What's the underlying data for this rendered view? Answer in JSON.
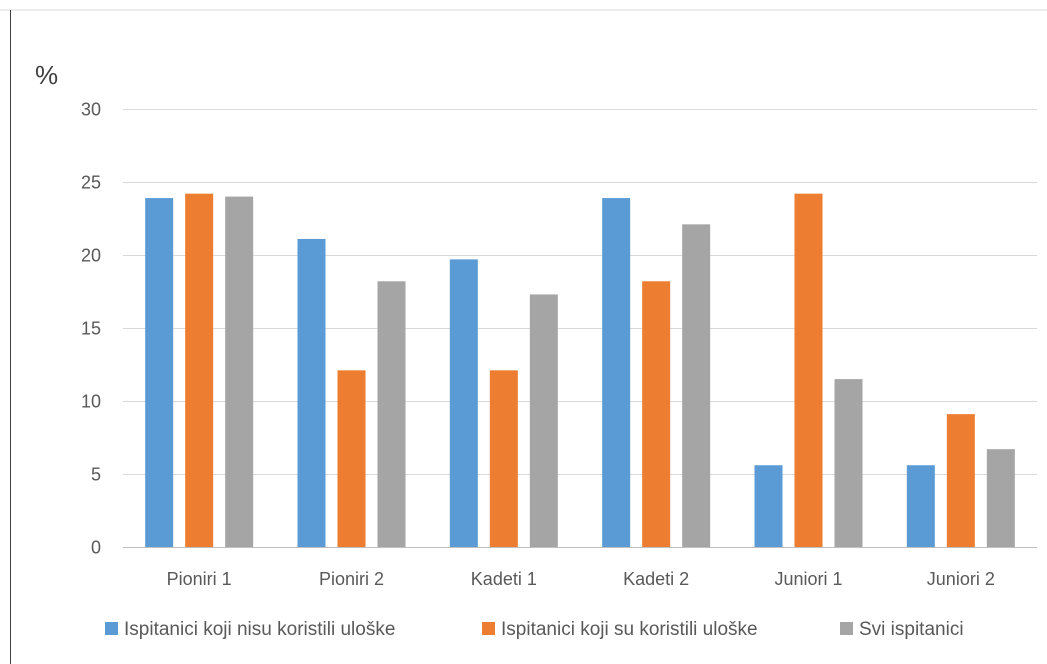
{
  "chart_data": {
    "type": "bar",
    "ylabel": "%",
    "ylim": [
      0,
      30
    ],
    "yticks": [
      0,
      5,
      10,
      15,
      20,
      25,
      30
    ],
    "grid": true,
    "legend_position": "bottom",
    "categories": [
      "Pioniri 1",
      "Pioniri 2",
      "Kadeti 1",
      "Kadeti 2",
      "Juniori 1",
      "Juniori 2"
    ],
    "series": [
      {
        "name": "Ispitanici koji nisu koristili uloške",
        "color": "#5b9bd5",
        "values": [
          23.9,
          21.1,
          19.7,
          23.9,
          5.6,
          5.6
        ]
      },
      {
        "name": "Ispitanici koji su koristili uloške",
        "color": "#ed7d31",
        "values": [
          24.2,
          12.1,
          12.1,
          18.2,
          24.2,
          9.1
        ]
      },
      {
        "name": "Svi ispitanici",
        "color": "#a5a5a5",
        "values": [
          24.0,
          18.2,
          17.3,
          22.1,
          11.5,
          6.7
        ]
      }
    ]
  }
}
